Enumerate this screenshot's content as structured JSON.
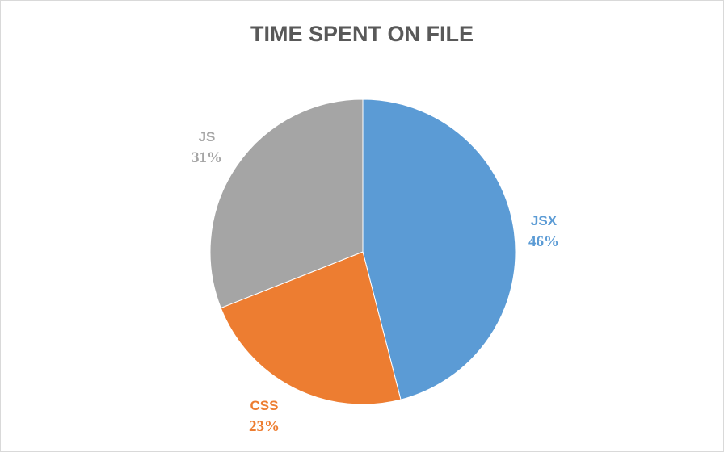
{
  "chart_data": {
    "type": "pie",
    "title": "TIME SPENT ON FILE",
    "slices": [
      {
        "label": "JSX",
        "value": 46,
        "value_label": "46%",
        "color": "#5b9bd5"
      },
      {
        "label": "CSS",
        "value": 23,
        "value_label": "23%",
        "color": "#ed7d31"
      },
      {
        "label": "JS",
        "value": 31,
        "value_label": "31%",
        "color": "#a5a5a5"
      }
    ]
  }
}
